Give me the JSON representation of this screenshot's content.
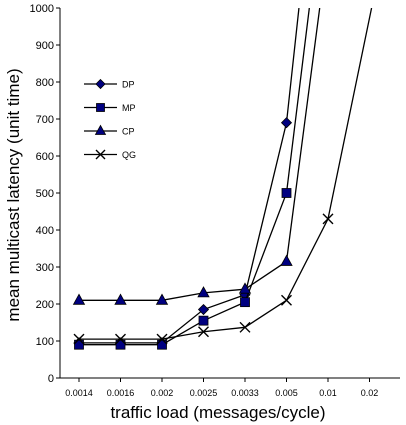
{
  "chart_data": {
    "type": "line",
    "title": "",
    "xlabel": "traffic load (messages/cycle)",
    "ylabel": "mean multicast latency (unit time)",
    "categories": [
      "0.0014",
      "0.0016",
      "0.002",
      "0.0025",
      "0.0033",
      "0.005",
      "0.01",
      "0.02"
    ],
    "ylim": [
      0,
      1000
    ],
    "yticks": [
      0,
      100,
      200,
      300,
      400,
      500,
      600,
      700,
      800,
      900,
      1000
    ],
    "x_positions": [
      0,
      1,
      2,
      3,
      4,
      5,
      6,
      7
    ],
    "grid": false,
    "legend_position": "top-left",
    "series": [
      {
        "name": "DP",
        "marker": "diamond",
        "x": [
          0,
          1,
          2,
          3,
          4,
          5,
          5.3
        ],
        "values": [
          95,
          95,
          95,
          185,
          225,
          690,
          1000
        ]
      },
      {
        "name": "MP",
        "marker": "square",
        "x": [
          0,
          1,
          2,
          3,
          4,
          5,
          5.55
        ],
        "values": [
          90,
          90,
          90,
          155,
          205,
          500,
          1000
        ]
      },
      {
        "name": "CP",
        "marker": "triangle",
        "x": [
          0,
          1,
          2,
          3,
          4,
          5,
          5.8
        ],
        "values": [
          210,
          210,
          210,
          230,
          240,
          315,
          1000
        ]
      },
      {
        "name": "QG",
        "marker": "x",
        "x": [
          0,
          1,
          2,
          3,
          4,
          5,
          6,
          7.05
        ],
        "values": [
          105,
          105,
          105,
          125,
          137,
          210,
          430,
          1000
        ]
      }
    ]
  }
}
